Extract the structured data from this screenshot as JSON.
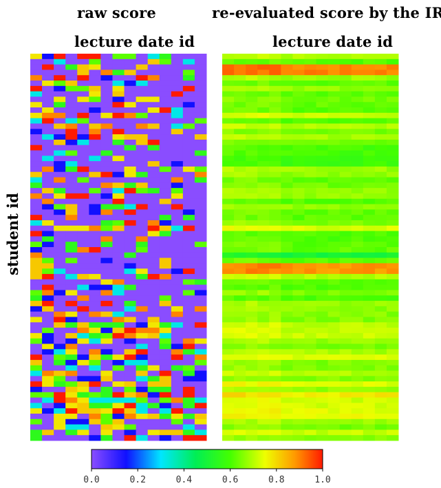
{
  "chart_data": [
    {
      "type": "heatmap",
      "title": "raw score",
      "xlabel": "lecture date id",
      "ylabel": "student id",
      "cols": 15,
      "rows": 72,
      "value_range": [
        0.0,
        1.0
      ]
    },
    {
      "type": "heatmap",
      "title": "re-evaluated score by the IRT",
      "xlabel": "lecture date id",
      "ylabel": "",
      "cols": 15,
      "rows": 72,
      "value_range": [
        0.0,
        1.0
      ]
    }
  ],
  "colorbar": {
    "ticks": [
      "0.0",
      "0.2",
      "0.4",
      "0.6",
      "0.8",
      "1.0"
    ],
    "tick_values": [
      0.0,
      0.2,
      0.4,
      0.6,
      0.8,
      1.0
    ],
    "stops": [
      {
        "value": 0.0,
        "color": "#8a4dff"
      },
      {
        "value": 0.15,
        "color": "#1010ff"
      },
      {
        "value": 0.3,
        "color": "#00e6ff"
      },
      {
        "value": 0.45,
        "color": "#00ee55"
      },
      {
        "value": 0.6,
        "color": "#44ff00"
      },
      {
        "value": 0.75,
        "color": "#eeff00"
      },
      {
        "value": 0.88,
        "color": "#ff9900"
      },
      {
        "value": 1.0,
        "color": "#ff1a00"
      }
    ]
  }
}
